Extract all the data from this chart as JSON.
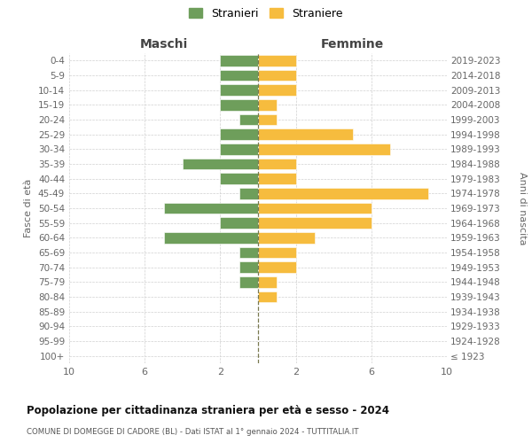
{
  "age_groups": [
    "100+",
    "95-99",
    "90-94",
    "85-89",
    "80-84",
    "75-79",
    "70-74",
    "65-69",
    "60-64",
    "55-59",
    "50-54",
    "45-49",
    "40-44",
    "35-39",
    "30-34",
    "25-29",
    "20-24",
    "15-19",
    "10-14",
    "5-9",
    "0-4"
  ],
  "birth_years": [
    "≤ 1923",
    "1924-1928",
    "1929-1933",
    "1934-1938",
    "1939-1943",
    "1944-1948",
    "1949-1953",
    "1954-1958",
    "1959-1963",
    "1964-1968",
    "1969-1973",
    "1974-1978",
    "1979-1983",
    "1984-1988",
    "1989-1993",
    "1994-1998",
    "1999-2003",
    "2004-2008",
    "2009-2013",
    "2014-2018",
    "2019-2023"
  ],
  "maschi": [
    0,
    0,
    0,
    0,
    0,
    1,
    1,
    1,
    5,
    2,
    5,
    1,
    2,
    4,
    2,
    2,
    1,
    2,
    2,
    2,
    2
  ],
  "femmine": [
    0,
    0,
    0,
    0,
    1,
    1,
    2,
    2,
    3,
    6,
    6,
    9,
    2,
    2,
    7,
    5,
    1,
    1,
    2,
    2,
    2
  ],
  "maschi_color": "#6e9e5b",
  "femmine_color": "#f6bc3e",
  "center_line_color": "#797950",
  "grid_color": "#d0d0d0",
  "bg_color": "#ffffff",
  "title": "Popolazione per cittadinanza straniera per età e sesso - 2024",
  "subtitle": "COMUNE DI DOMEGGE DI CADORE (BL) - Dati ISTAT al 1° gennaio 2024 - TUTTITALIA.IT",
  "left_header": "Maschi",
  "right_header": "Femmine",
  "ylabel_left": "Fasce di età",
  "ylabel_right": "Anni di nascita",
  "legend_stranieri": "Stranieri",
  "legend_straniere": "Straniere",
  "xlim": 10
}
